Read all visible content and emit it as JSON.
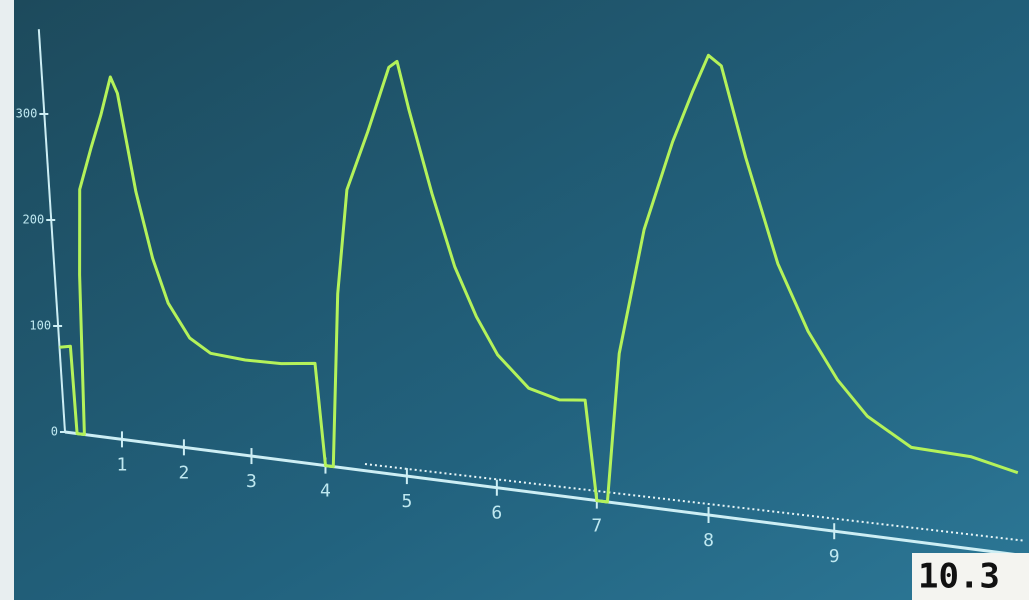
{
  "chart_data": {
    "type": "line",
    "x": [
      0,
      0.2,
      0.22,
      0.35,
      0.45,
      0.55,
      0.8,
      1.0,
      1.2,
      1.3,
      1.5,
      1.7,
      1.9,
      2.2,
      2.5,
      3.0,
      3.5,
      3.95,
      4.0,
      4.1,
      4.3,
      4.5,
      4.8,
      5.1,
      5.2,
      5.3,
      5.5,
      5.7,
      5.9,
      6.1,
      6.4,
      6.7,
      6.95,
      7.0,
      7.1,
      7.3,
      7.6,
      7.9,
      8.1,
      8.25,
      8.35,
      8.5,
      8.7,
      8.9,
      9.1,
      9.3,
      9.6,
      10.0,
      10.3
    ],
    "values": [
      80,
      82,
      0,
      0,
      150,
      230,
      270,
      300,
      335,
      320,
      230,
      170,
      130,
      100,
      88,
      85,
      85,
      88,
      0,
      0,
      150,
      240,
      290,
      345,
      350,
      310,
      240,
      180,
      140,
      110,
      85,
      78,
      80,
      0,
      0,
      120,
      220,
      290,
      330,
      358,
      350,
      280,
      200,
      150,
      115,
      90,
      70,
      68,
      60
    ],
    "color": "#b4f25a",
    "xlim": [
      0,
      10.3
    ],
    "xticks": [
      1,
      2,
      3,
      4,
      5,
      6,
      7,
      8,
      9
    ],
    "ylim": [
      0,
      380
    ],
    "yticks": [
      0,
      100,
      200,
      300
    ],
    "annotation": "10.3"
  }
}
